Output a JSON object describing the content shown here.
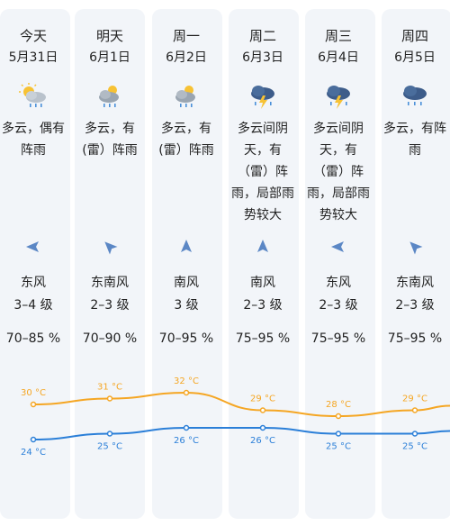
{
  "colors": {
    "high": "#f5a623",
    "low": "#2b7fd8",
    "card": "#f2f5f9"
  },
  "days": [
    {
      "day": "今天",
      "date": "5月31日",
      "icon": "partly-cloudy-rain-icon",
      "desc": [
        "多云，偶有",
        "阵雨"
      ],
      "wind_dir": "east-wind-arrow-icon",
      "wind": "东风",
      "level": "3–4 级",
      "humidity": "70–85 %",
      "high": "30 °C",
      "low": "24 °C"
    },
    {
      "day": "明天",
      "date": "6月1日",
      "icon": "cloud-rain-icon",
      "desc": [
        "多云，有",
        "(雷）阵雨"
      ],
      "wind_dir": "southeast-wind-arrow-icon",
      "wind": "东南风",
      "level": "2–3 级",
      "humidity": "70–90 %",
      "high": "31 °C",
      "low": "25 °C"
    },
    {
      "day": "周一",
      "date": "6月2日",
      "icon": "cloud-rain-icon",
      "desc": [
        "多云，有",
        "(雷）阵雨"
      ],
      "wind_dir": "south-wind-arrow-icon",
      "wind": "南风",
      "level": "3 级",
      "humidity": "70–95 %",
      "high": "32 °C",
      "low": "26 °C"
    },
    {
      "day": "周二",
      "date": "6月3日",
      "icon": "thunderstorm-icon",
      "desc": [
        "多云间阴",
        "天，有",
        "（雷）阵",
        "雨，局部雨",
        "势较大"
      ],
      "wind_dir": "south-wind-arrow-icon",
      "wind": "南风",
      "level": "2–3 级",
      "humidity": "75–95 %",
      "high": "29 °C",
      "low": "26 °C"
    },
    {
      "day": "周三",
      "date": "6月4日",
      "icon": "thunderstorm-icon",
      "desc": [
        "多云间阴",
        "天，有",
        "（雷）阵",
        "雨，局部雨",
        "势较大"
      ],
      "wind_dir": "east-wind-arrow-icon",
      "wind": "东风",
      "level": "2–3 级",
      "humidity": "75–95 %",
      "high": "28 °C",
      "low": "25 °C"
    },
    {
      "day": "周四",
      "date": "6月5日",
      "icon": "dark-cloud-rain-icon",
      "desc": [
        "多云，有阵",
        "雨"
      ],
      "wind_dir": "southeast-wind-arrow-icon",
      "wind": "东南风",
      "level": "2–3 级",
      "humidity": "75–95 %",
      "high": "29 °C",
      "low": "25 °C"
    }
  ],
  "chart_data": {
    "type": "line",
    "categories": [
      "5月31日",
      "6月1日",
      "6月2日",
      "6月3日",
      "6月4日",
      "6月5日"
    ],
    "series": [
      {
        "values": [
          30,
          31,
          32,
          29,
          28,
          29
        ]
      },
      {
        "values": [
          24,
          25,
          26,
          26,
          25,
          25
        ]
      }
    ],
    "unit": "°C"
  }
}
